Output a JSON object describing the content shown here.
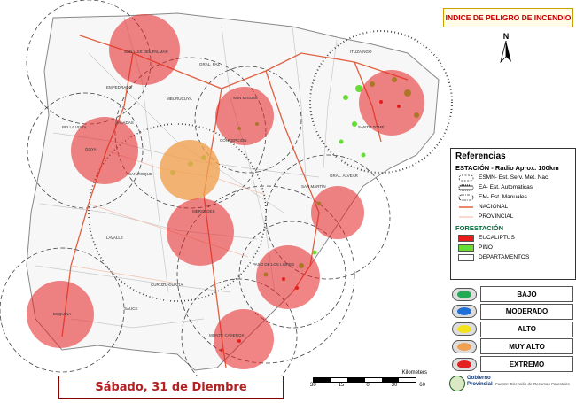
{
  "title": "INDICE DE PELIGRO DE INCENDIO",
  "north_label": "N",
  "date": "Sábado, 31 de Diembre",
  "map": {
    "place_labels": [
      "SANTO TOMÉ",
      "GRAL. PAZ",
      "CONCEPCIÓN",
      "SAN ROQUE",
      "MERCEDES",
      "SAN MARTÍN",
      "CURUZU CUATIA",
      "MONTE CASEROS",
      "ESQUINA",
      "SAUCE",
      "GOYA",
      "LAVALLE",
      "SAN LUIS DEL PALMAR",
      "EMPEDRADO",
      "MBURUCUYA",
      "SALADAS",
      "BELLA VISTA",
      "ITUZAINGÓ",
      "SAN MIGUEL",
      "PASO DE LOS LIBRES",
      "GRAL. ALVEAR"
    ]
  },
  "legend": {
    "title": "Referencias",
    "station_heading": "ESTACIÓN - Radio Aprox. 100km",
    "stations": [
      {
        "label": "ESMN- Est. Serv. Met. Nac.",
        "style": "dashed"
      },
      {
        "label": "EA- Est. Automaticas",
        "style": "hatched"
      },
      {
        "label": "EM- Est. Manuales",
        "style": "dash-dot"
      }
    ],
    "roads": [
      {
        "label": "NACIONAL",
        "color": "#e06040"
      },
      {
        "label": "PROVINCIAL",
        "color": "#f4c2b0"
      }
    ],
    "forest_heading": "FORESTACIÓN",
    "forest": [
      {
        "label": "EUCALIPTUS",
        "color": "#e81c1c"
      },
      {
        "label": "PINO",
        "color": "#66dd33"
      },
      {
        "label": "DEPARTAMENTOS",
        "color": "#ffffff"
      }
    ]
  },
  "risk_levels": [
    {
      "label": "BAJO",
      "color": "#22aa55"
    },
    {
      "label": "MODERADO",
      "color": "#1f6fd6"
    },
    {
      "label": "ALTO",
      "color": "#f4e21c"
    },
    {
      "label": "MUY ALTO",
      "color": "#f0a050"
    },
    {
      "label": "EXTREMO",
      "color": "#e52020"
    }
  ],
  "zones": [
    {
      "name": "Santo Tomé",
      "level": "EXTREMO"
    },
    {
      "name": "San Luis del Palmar",
      "level": "EXTREMO"
    },
    {
      "name": "San Miguel",
      "level": "EXTREMO"
    },
    {
      "name": "Bella Vista",
      "level": "EXTREMO"
    },
    {
      "name": "Concepción",
      "level": "MUY ALTO"
    },
    {
      "name": "Mercedes",
      "level": "EXTREMO"
    },
    {
      "name": "Paso de los Libres",
      "level": "EXTREMO"
    },
    {
      "name": "Curuzu Cuatia",
      "level": "EXTREMO"
    },
    {
      "name": "Esquina",
      "level": "EXTREMO"
    },
    {
      "name": "Monte Caseros",
      "level": "EXTREMO"
    }
  ],
  "scale": {
    "unit": "Kilometers",
    "ticks": [
      "30",
      "15",
      "0",
      "30",
      "60"
    ]
  },
  "logo": {
    "line1": "Gobierno",
    "line2": "Provincial",
    "source": "Fuente: Dirección de Recursos Forestales"
  }
}
